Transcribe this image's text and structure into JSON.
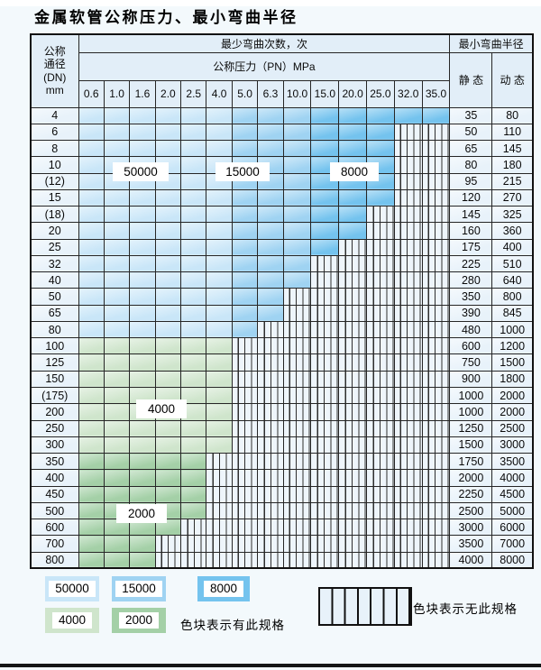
{
  "title": "金属软管公称压力、最小弯曲半径",
  "colors": {
    "page_bg": "#f3f9fc",
    "header_bg": "#e2eef8",
    "side_bg": "#e8f2fa",
    "blue_50000": "#c9e6f8",
    "blue_15000": "#9fd3f2",
    "blue_8000": "#74c3ee",
    "green_4000": "#cfe5cc",
    "green_2000": "#a4d0a7",
    "grid": "#262626"
  },
  "table": {
    "dn_header_lines": [
      "公称",
      "通径",
      "(DN)",
      "mm"
    ],
    "bend_times_header": "最少弯曲次数，次",
    "pressure_header": "公称压力（PN）MPa",
    "pressure_values": [
      "0.6",
      "1.0",
      "1.6",
      "2.0",
      "2.5",
      "4.0",
      "5.0",
      "6.3",
      "10.0",
      "15.0",
      "20.0",
      "25.0",
      "32.0",
      "35.0"
    ],
    "radius_header": "最小弯曲半径",
    "static_header": "静 态",
    "dynamic_header": "动 态",
    "blue_zones": [
      {
        "value": "50000",
        "from": "0.6",
        "to": "4.0"
      },
      {
        "value": "15000",
        "from": "5.0",
        "to": "10.0"
      },
      {
        "value": "8000",
        "from": "15.0",
        "to": "35.0"
      }
    ],
    "rows": [
      {
        "dn": "4",
        "family": "blue",
        "max_pn": "35.0",
        "static": "35",
        "dynamic": "80"
      },
      {
        "dn": "6",
        "family": "blue",
        "max_pn": "25.0",
        "static": "50",
        "dynamic": "110"
      },
      {
        "dn": "8",
        "family": "blue",
        "max_pn": "25.0",
        "static": "65",
        "dynamic": "145"
      },
      {
        "dn": "10",
        "family": "blue",
        "max_pn": "25.0",
        "static": "80",
        "dynamic": "180"
      },
      {
        "dn": "(12)",
        "family": "blue",
        "max_pn": "25.0",
        "static": "95",
        "dynamic": "215"
      },
      {
        "dn": "15",
        "family": "blue",
        "max_pn": "25.0",
        "static": "120",
        "dynamic": "270"
      },
      {
        "dn": "(18)",
        "family": "blue",
        "max_pn": "20.0",
        "static": "145",
        "dynamic": "325"
      },
      {
        "dn": "20",
        "family": "blue",
        "max_pn": "20.0",
        "static": "160",
        "dynamic": "360"
      },
      {
        "dn": "25",
        "family": "blue",
        "max_pn": "15.0",
        "static": "175",
        "dynamic": "400"
      },
      {
        "dn": "32",
        "family": "blue",
        "max_pn": "10.0",
        "static": "225",
        "dynamic": "510"
      },
      {
        "dn": "40",
        "family": "blue",
        "max_pn": "10.0",
        "static": "280",
        "dynamic": "640"
      },
      {
        "dn": "50",
        "family": "blue",
        "max_pn": "6.3",
        "static": "350",
        "dynamic": "800"
      },
      {
        "dn": "65",
        "family": "blue",
        "max_pn": "6.3",
        "static": "390",
        "dynamic": "845"
      },
      {
        "dn": "80",
        "family": "blue",
        "max_pn": "5.0",
        "static": "480",
        "dynamic": "1000"
      },
      {
        "dn": "100",
        "family": "g4000",
        "max_pn": "4.0",
        "static": "600",
        "dynamic": "1200"
      },
      {
        "dn": "125",
        "family": "g4000",
        "max_pn": "4.0",
        "static": "750",
        "dynamic": "1500"
      },
      {
        "dn": "150",
        "family": "g4000",
        "max_pn": "4.0",
        "static": "900",
        "dynamic": "1800"
      },
      {
        "dn": "(175)",
        "family": "g4000",
        "max_pn": "4.0",
        "static": "1000",
        "dynamic": "2000"
      },
      {
        "dn": "200",
        "family": "g4000",
        "max_pn": "4.0",
        "static": "1000",
        "dynamic": "2000"
      },
      {
        "dn": "250",
        "family": "g4000",
        "max_pn": "4.0",
        "static": "1250",
        "dynamic": "2500"
      },
      {
        "dn": "300",
        "family": "g4000",
        "max_pn": "4.0",
        "static": "1500",
        "dynamic": "3000"
      },
      {
        "dn": "350",
        "family": "g2000",
        "max_pn": "2.5",
        "static": "1750",
        "dynamic": "3500"
      },
      {
        "dn": "400",
        "family": "g2000",
        "max_pn": "2.5",
        "static": "2000",
        "dynamic": "4000"
      },
      {
        "dn": "450",
        "family": "g2000",
        "max_pn": "2.5",
        "static": "2250",
        "dynamic": "4500"
      },
      {
        "dn": "500",
        "family": "g2000",
        "max_pn": "2.5",
        "static": "2500",
        "dynamic": "5000"
      },
      {
        "dn": "600",
        "family": "g2000",
        "max_pn": "2.0",
        "static": "3000",
        "dynamic": "6000"
      },
      {
        "dn": "700",
        "family": "g2000",
        "max_pn": "1.6",
        "static": "3500",
        "dynamic": "7000"
      },
      {
        "dn": "800",
        "family": "g2000",
        "max_pn": "1.6",
        "static": "4000",
        "dynamic": "8000"
      }
    ],
    "overlay_labels": [
      {
        "text": "50000"
      },
      {
        "text": "15000"
      },
      {
        "text": "8000"
      },
      {
        "text": "4000"
      },
      {
        "text": "2000"
      }
    ]
  },
  "legend": {
    "chips": [
      {
        "label": "50000",
        "color_key": "blue_50000"
      },
      {
        "label": "15000",
        "color_key": "blue_15000"
      },
      {
        "label": "8000",
        "color_key": "blue_8000"
      },
      {
        "label": "4000",
        "color_key": "green_4000"
      },
      {
        "label": "2000",
        "color_key": "green_2000"
      }
    ],
    "has_spec_text": "色块表示有此规格",
    "no_spec_text": "色块表示无此规格"
  }
}
